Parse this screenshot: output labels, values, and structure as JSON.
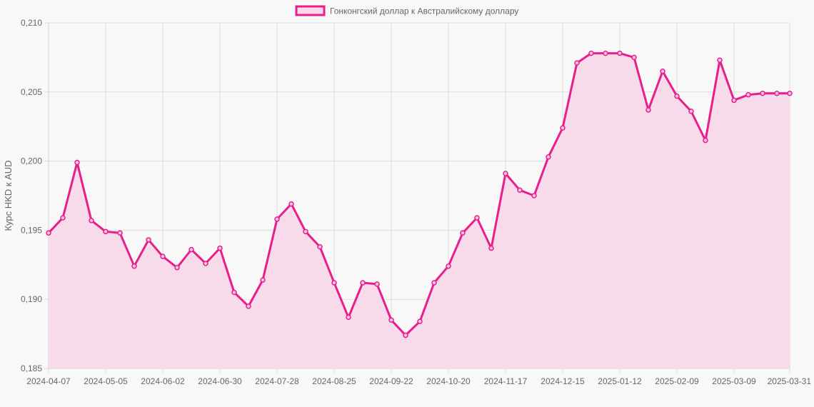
{
  "chart_data": {
    "type": "line",
    "title": "",
    "legend": {
      "position": "top",
      "entries": [
        "Гонконгский доллар к Австралийскому доллару"
      ]
    },
    "xlabel": "",
    "ylabel": "Курс HKD к AUD",
    "ylim": [
      0.185,
      0.21
    ],
    "yticks": [
      "0,185",
      "0,190",
      "0,195",
      "0,200",
      "0,205",
      "0,210"
    ],
    "ytick_values": [
      0.185,
      0.19,
      0.195,
      0.2,
      0.205,
      0.21
    ],
    "xtick_labels": [
      "2024-04-07",
      "2024-05-05",
      "2024-06-02",
      "2024-06-30",
      "2024-07-28",
      "2024-08-25",
      "2024-09-22",
      "2024-10-20",
      "2024-11-17",
      "2024-12-15",
      "2025-01-12",
      "2025-02-09",
      "2025-03-09",
      "2025-03-31"
    ],
    "grid": true,
    "fill": true,
    "colors": {
      "line": "#e91e8c",
      "fill": "#f8d9e9",
      "grid": "#dddddd",
      "background": "#f8f8f8"
    },
    "x": [
      "2024-04-07",
      "2024-04-14",
      "2024-04-21",
      "2024-04-28",
      "2024-05-05",
      "2024-05-12",
      "2024-05-19",
      "2024-05-26",
      "2024-06-02",
      "2024-06-09",
      "2024-06-16",
      "2024-06-23",
      "2024-06-30",
      "2024-07-07",
      "2024-07-14",
      "2024-07-21",
      "2024-07-28",
      "2024-08-04",
      "2024-08-11",
      "2024-08-18",
      "2024-08-25",
      "2024-09-01",
      "2024-09-08",
      "2024-09-15",
      "2024-09-22",
      "2024-09-29",
      "2024-10-06",
      "2024-10-13",
      "2024-10-20",
      "2024-10-27",
      "2024-11-03",
      "2024-11-10",
      "2024-11-17",
      "2024-11-24",
      "2024-12-01",
      "2024-12-08",
      "2024-12-15",
      "2024-12-22",
      "2024-12-29",
      "2025-01-05",
      "2025-01-12",
      "2025-01-19",
      "2025-01-26",
      "2025-02-02",
      "2025-02-09",
      "2025-02-16",
      "2025-02-23",
      "2025-03-02",
      "2025-03-09",
      "2025-03-16",
      "2025-03-23",
      "2025-03-30",
      "2025-03-31"
    ],
    "series": [
      {
        "name": "Гонконгский доллар к Австралийскому доллару",
        "values": [
          0.1948,
          0.1959,
          0.1999,
          0.1957,
          0.1949,
          0.1948,
          0.1924,
          0.1943,
          0.1931,
          0.1923,
          0.1936,
          0.1926,
          0.1937,
          0.1905,
          0.1895,
          0.1914,
          0.1958,
          0.1969,
          0.1949,
          0.1938,
          0.1912,
          0.1887,
          0.1912,
          0.1911,
          0.1885,
          0.1874,
          0.1884,
          0.1912,
          0.1924,
          0.1948,
          0.1959,
          0.1937,
          0.1991,
          0.1979,
          0.1975,
          0.2003,
          0.2024,
          0.2071,
          0.2078,
          0.2078,
          0.2078,
          0.2075,
          0.2037,
          0.2065,
          0.2047,
          0.2036,
          0.2015,
          0.2073,
          0.2044,
          0.2048,
          0.2049,
          0.2049,
          0.2049
        ]
      }
    ]
  }
}
